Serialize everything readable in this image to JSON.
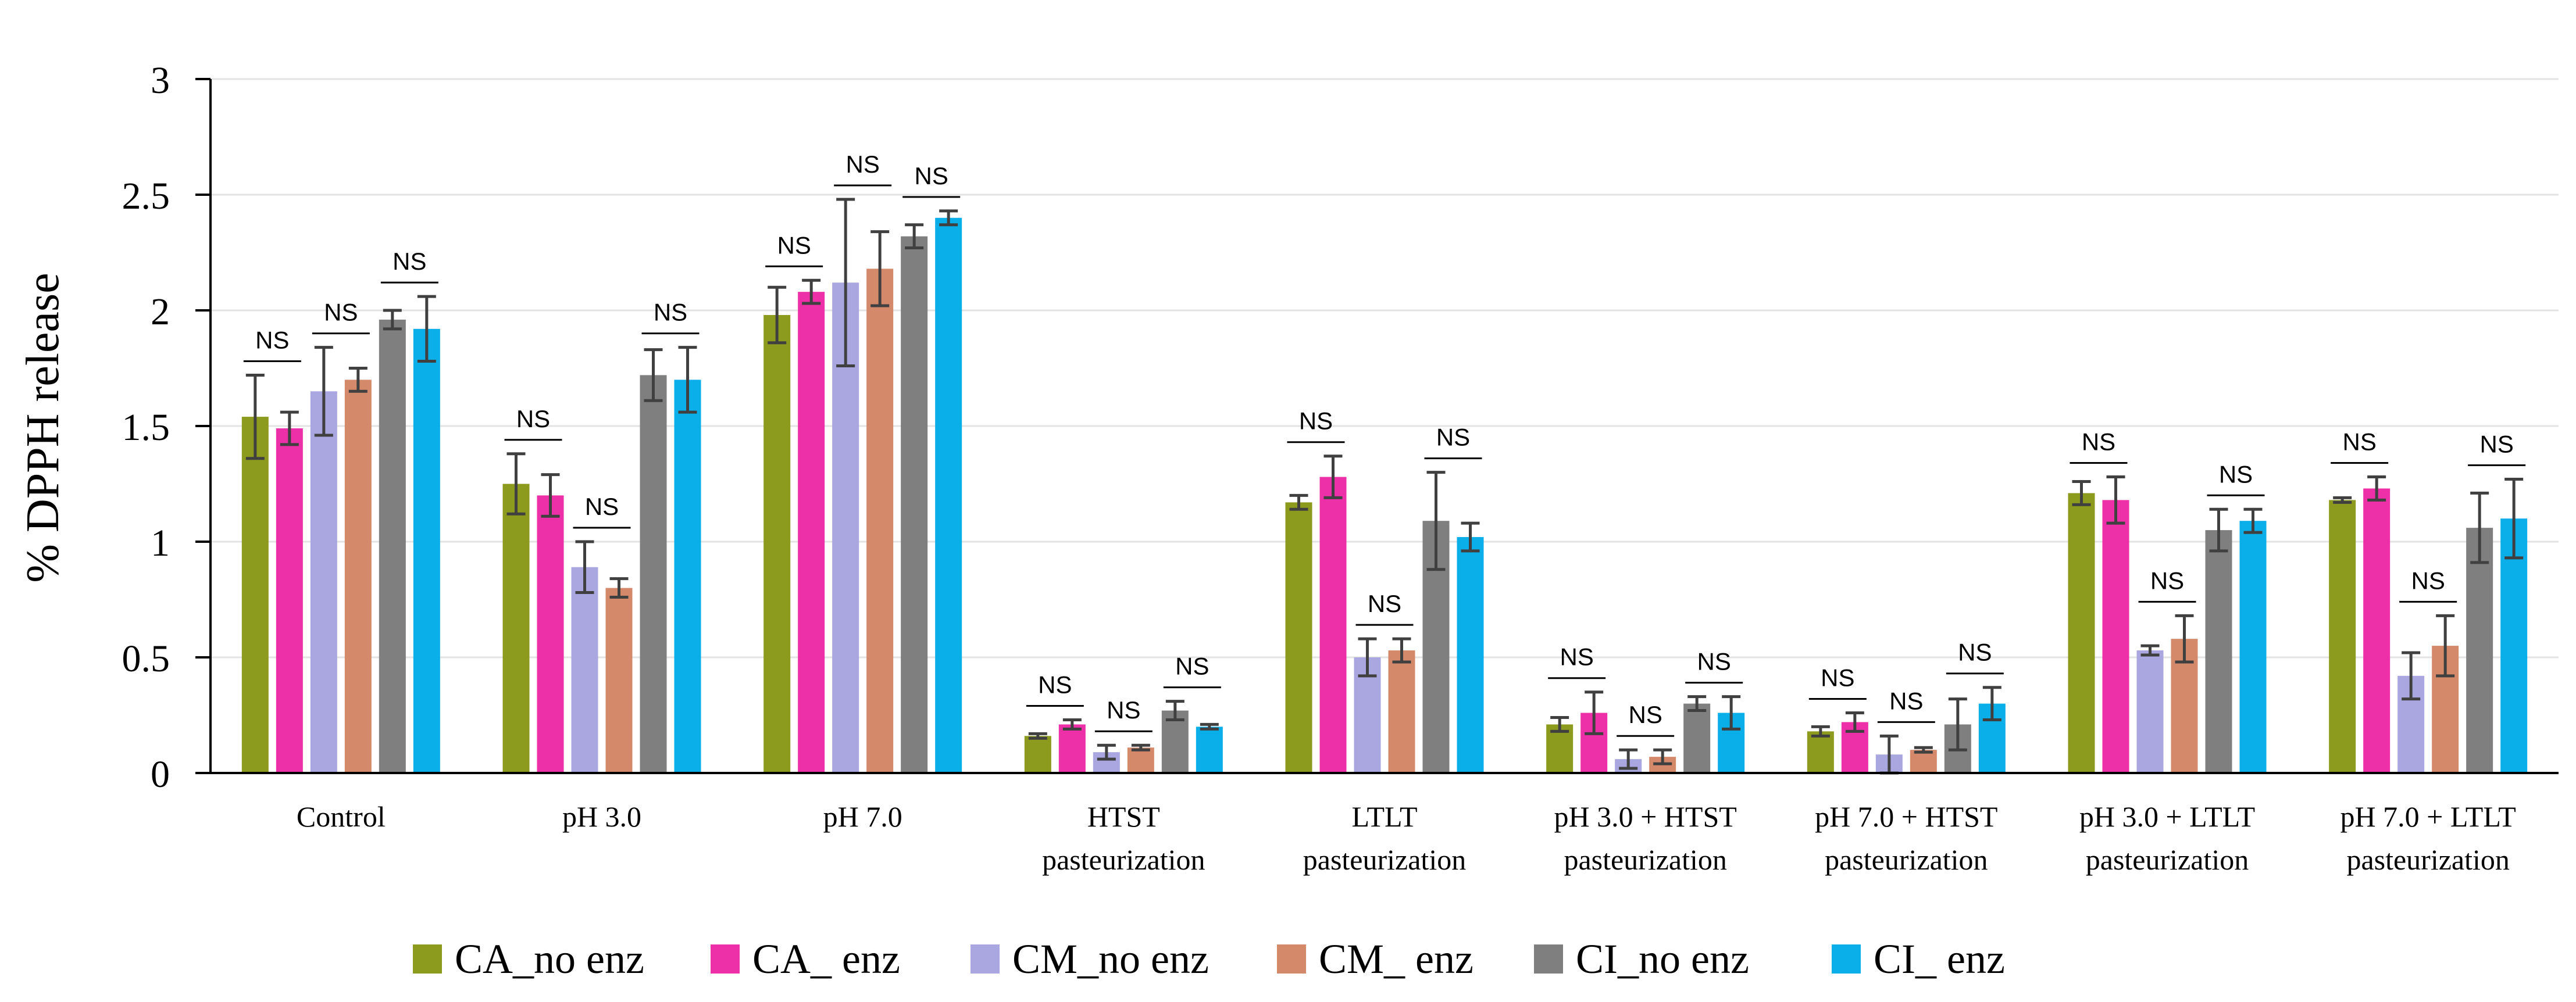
{
  "chart_data": {
    "type": "bar",
    "title": "",
    "xlabel": "",
    "ylabel": "% DPPH release",
    "ylim": [
      0,
      3
    ],
    "yticks": [
      "0",
      "0.5",
      "1",
      "1.5",
      "2",
      "2.5",
      "3"
    ],
    "grid": true,
    "legend_position": "bottom",
    "categories": [
      [
        "Control"
      ],
      [
        "pH 3.0"
      ],
      [
        "pH 7.0"
      ],
      [
        "HTST",
        "pasteurization"
      ],
      [
        "LTLT",
        "pasteurization"
      ],
      [
        "pH 3.0 + HTST",
        "pasteurization"
      ],
      [
        "pH 7.0 + HTST",
        "pasteurization"
      ],
      [
        "pH 3.0 + LTLT",
        "pasteurization"
      ],
      [
        "pH 7.0 + LTLT",
        "pasteurization"
      ]
    ],
    "series": [
      {
        "name": "CA_no enz",
        "color": "#8c9a1e",
        "values": [
          1.54,
          1.25,
          1.98,
          0.16,
          1.17,
          0.21,
          0.18,
          1.21,
          1.18
        ],
        "errors": [
          0.18,
          0.13,
          0.12,
          0.01,
          0.03,
          0.03,
          0.02,
          0.05,
          0.01
        ]
      },
      {
        "name": "CA_ enz",
        "color": "#ed2fa8",
        "values": [
          1.49,
          1.2,
          2.08,
          0.21,
          1.28,
          0.26,
          0.22,
          1.18,
          1.23
        ],
        "errors": [
          0.07,
          0.09,
          0.05,
          0.02,
          0.09,
          0.09,
          0.04,
          0.1,
          0.05
        ]
      },
      {
        "name": "CM_no enz",
        "color": "#a9a6e0",
        "values": [
          1.65,
          0.89,
          2.12,
          0.09,
          0.5,
          0.06,
          0.08,
          0.53,
          0.42
        ],
        "errors": [
          0.19,
          0.11,
          0.36,
          0.03,
          0.08,
          0.04,
          0.08,
          0.02,
          0.1
        ]
      },
      {
        "name": "CM_ enz",
        "color": "#d4896b",
        "values": [
          1.7,
          0.8,
          2.18,
          0.11,
          0.53,
          0.07,
          0.1,
          0.58,
          0.55
        ],
        "errors": [
          0.05,
          0.04,
          0.16,
          0.01,
          0.05,
          0.03,
          0.01,
          0.1,
          0.13
        ]
      },
      {
        "name": "CI_no enz",
        "color": "#7f7f7f",
        "values": [
          1.96,
          1.72,
          2.32,
          0.27,
          1.09,
          0.3,
          0.21,
          1.05,
          1.06
        ],
        "errors": [
          0.04,
          0.11,
          0.05,
          0.04,
          0.21,
          0.03,
          0.11,
          0.09,
          0.15
        ]
      },
      {
        "name": "CI_ enz",
        "color": "#0aaee9",
        "values": [
          1.92,
          1.7,
          2.4,
          0.2,
          1.02,
          0.26,
          0.3,
          1.09,
          1.1
        ],
        "errors": [
          0.14,
          0.14,
          0.03,
          0.01,
          0.06,
          0.07,
          0.07,
          0.05,
          0.17
        ]
      }
    ],
    "annotations": [
      {
        "text": "NS",
        "category": 0,
        "from": 0,
        "to": 1
      },
      {
        "text": "NS",
        "category": 0,
        "from": 2,
        "to": 3
      },
      {
        "text": "NS",
        "category": 0,
        "from": 4,
        "to": 5
      },
      {
        "text": "NS",
        "category": 1,
        "from": 0,
        "to": 1
      },
      {
        "text": "NS",
        "category": 1,
        "from": 2,
        "to": 3
      },
      {
        "text": "NS",
        "category": 1,
        "from": 4,
        "to": 5
      },
      {
        "text": "NS",
        "category": 2,
        "from": 0,
        "to": 1
      },
      {
        "text": "NS",
        "category": 2,
        "from": 2,
        "to": 3
      },
      {
        "text": "NS",
        "category": 2,
        "from": 4,
        "to": 5
      },
      {
        "text": "NS",
        "category": 3,
        "from": 0,
        "to": 1
      },
      {
        "text": "NS",
        "category": 3,
        "from": 2,
        "to": 3
      },
      {
        "text": "NS",
        "category": 3,
        "from": 4,
        "to": 5
      },
      {
        "text": "NS",
        "category": 4,
        "from": 0,
        "to": 1
      },
      {
        "text": "NS",
        "category": 4,
        "from": 2,
        "to": 3
      },
      {
        "text": "NS",
        "category": 4,
        "from": 4,
        "to": 5
      },
      {
        "text": "NS",
        "category": 5,
        "from": 0,
        "to": 1
      },
      {
        "text": "NS",
        "category": 5,
        "from": 2,
        "to": 3
      },
      {
        "text": "NS",
        "category": 5,
        "from": 4,
        "to": 5
      },
      {
        "text": "NS",
        "category": 6,
        "from": 0,
        "to": 1
      },
      {
        "text": "NS",
        "category": 6,
        "from": 2,
        "to": 3
      },
      {
        "text": "NS",
        "category": 6,
        "from": 4,
        "to": 5
      },
      {
        "text": "NS",
        "category": 7,
        "from": 0,
        "to": 1
      },
      {
        "text": "NS",
        "category": 7,
        "from": 2,
        "to": 3
      },
      {
        "text": "NS",
        "category": 7,
        "from": 4,
        "to": 5
      },
      {
        "text": "NS",
        "category": 8,
        "from": 0,
        "to": 1
      },
      {
        "text": "NS",
        "category": 8,
        "from": 2,
        "to": 3
      },
      {
        "text": "NS",
        "category": 8,
        "from": 4,
        "to": 5
      }
    ]
  }
}
